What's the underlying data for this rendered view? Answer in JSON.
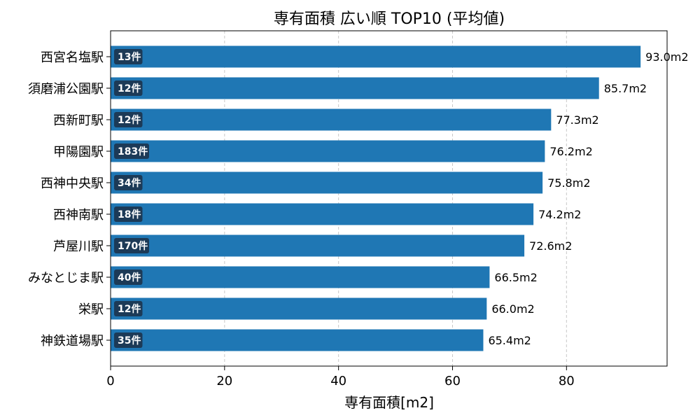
{
  "chart_data": {
    "type": "bar",
    "orientation": "horizontal",
    "title": "専有面積 広い順 TOP10 (平均値)",
    "xlabel": "専有面積[m2]",
    "ylabel": "",
    "xlim": [
      0,
      97.65
    ],
    "xticks": [
      0,
      20,
      40,
      60,
      80
    ],
    "grid": "x-dashed",
    "bar_color": "#1f77b4",
    "count_badge_color": "#1c3a57",
    "categories": [
      "西宮名塩駅",
      "須磨浦公園駅",
      "西新町駅",
      "甲陽園駅",
      "西神中央駅",
      "西神南駅",
      "芦屋川駅",
      "みなとじま駅",
      "栄駅",
      "神鉄道場駅"
    ],
    "values": [
      93.0,
      85.7,
      77.3,
      76.2,
      75.8,
      74.2,
      72.6,
      66.5,
      66.0,
      65.4
    ],
    "value_labels": [
      "93.0m2",
      "85.7m2",
      "77.3m2",
      "76.2m2",
      "75.8m2",
      "74.2m2",
      "72.6m2",
      "66.5m2",
      "66.0m2",
      "65.4m2"
    ],
    "counts": [
      "13件",
      "12件",
      "12件",
      "183件",
      "34件",
      "18件",
      "170件",
      "40件",
      "12件",
      "35件"
    ]
  }
}
